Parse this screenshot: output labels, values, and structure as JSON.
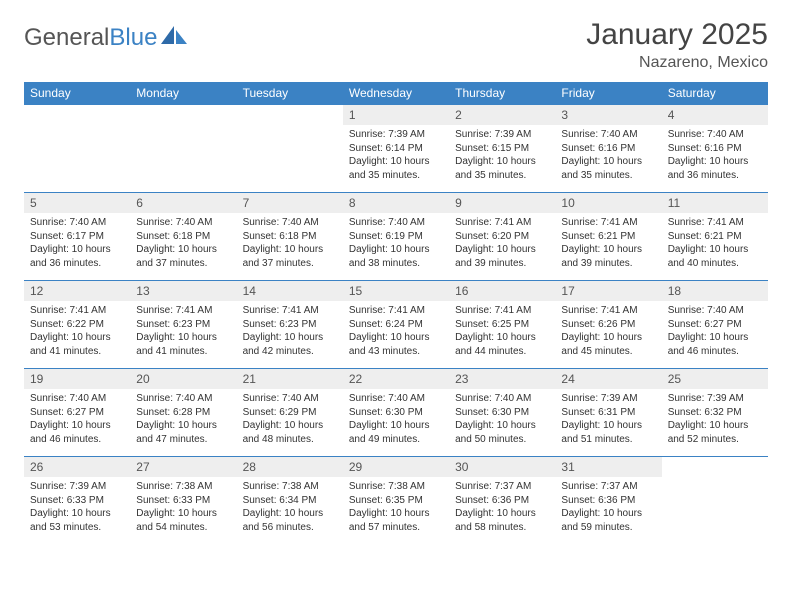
{
  "logo": {
    "word1": "General",
    "word2": "Blue"
  },
  "title": "January 2025",
  "subtitle": "Nazareno, Mexico",
  "colors": {
    "header_bg": "#3b82c4",
    "header_text": "#ffffff",
    "daynum_bg": "#eeeeee",
    "body_text": "#333333",
    "row_border": "#3b82c4",
    "page_bg": "#ffffff"
  },
  "typography": {
    "title_fontsize": 30,
    "subtitle_fontsize": 16,
    "dayheader_fontsize": 12,
    "daynum_fontsize": 12,
    "cell_fontsize": 10
  },
  "day_headers": [
    "Sunday",
    "Monday",
    "Tuesday",
    "Wednesday",
    "Thursday",
    "Friday",
    "Saturday"
  ],
  "weeks": [
    [
      {
        "n": "",
        "lines": []
      },
      {
        "n": "",
        "lines": []
      },
      {
        "n": "",
        "lines": []
      },
      {
        "n": "1",
        "lines": [
          "Sunrise: 7:39 AM",
          "Sunset: 6:14 PM",
          "Daylight: 10 hours and 35 minutes."
        ]
      },
      {
        "n": "2",
        "lines": [
          "Sunrise: 7:39 AM",
          "Sunset: 6:15 PM",
          "Daylight: 10 hours and 35 minutes."
        ]
      },
      {
        "n": "3",
        "lines": [
          "Sunrise: 7:40 AM",
          "Sunset: 6:16 PM",
          "Daylight: 10 hours and 35 minutes."
        ]
      },
      {
        "n": "4",
        "lines": [
          "Sunrise: 7:40 AM",
          "Sunset: 6:16 PM",
          "Daylight: 10 hours and 36 minutes."
        ]
      }
    ],
    [
      {
        "n": "5",
        "lines": [
          "Sunrise: 7:40 AM",
          "Sunset: 6:17 PM",
          "Daylight: 10 hours and 36 minutes."
        ]
      },
      {
        "n": "6",
        "lines": [
          "Sunrise: 7:40 AM",
          "Sunset: 6:18 PM",
          "Daylight: 10 hours and 37 minutes."
        ]
      },
      {
        "n": "7",
        "lines": [
          "Sunrise: 7:40 AM",
          "Sunset: 6:18 PM",
          "Daylight: 10 hours and 37 minutes."
        ]
      },
      {
        "n": "8",
        "lines": [
          "Sunrise: 7:40 AM",
          "Sunset: 6:19 PM",
          "Daylight: 10 hours and 38 minutes."
        ]
      },
      {
        "n": "9",
        "lines": [
          "Sunrise: 7:41 AM",
          "Sunset: 6:20 PM",
          "Daylight: 10 hours and 39 minutes."
        ]
      },
      {
        "n": "10",
        "lines": [
          "Sunrise: 7:41 AM",
          "Sunset: 6:21 PM",
          "Daylight: 10 hours and 39 minutes."
        ]
      },
      {
        "n": "11",
        "lines": [
          "Sunrise: 7:41 AM",
          "Sunset: 6:21 PM",
          "Daylight: 10 hours and 40 minutes."
        ]
      }
    ],
    [
      {
        "n": "12",
        "lines": [
          "Sunrise: 7:41 AM",
          "Sunset: 6:22 PM",
          "Daylight: 10 hours and 41 minutes."
        ]
      },
      {
        "n": "13",
        "lines": [
          "Sunrise: 7:41 AM",
          "Sunset: 6:23 PM",
          "Daylight: 10 hours and 41 minutes."
        ]
      },
      {
        "n": "14",
        "lines": [
          "Sunrise: 7:41 AM",
          "Sunset: 6:23 PM",
          "Daylight: 10 hours and 42 minutes."
        ]
      },
      {
        "n": "15",
        "lines": [
          "Sunrise: 7:41 AM",
          "Sunset: 6:24 PM",
          "Daylight: 10 hours and 43 minutes."
        ]
      },
      {
        "n": "16",
        "lines": [
          "Sunrise: 7:41 AM",
          "Sunset: 6:25 PM",
          "Daylight: 10 hours and 44 minutes."
        ]
      },
      {
        "n": "17",
        "lines": [
          "Sunrise: 7:41 AM",
          "Sunset: 6:26 PM",
          "Daylight: 10 hours and 45 minutes."
        ]
      },
      {
        "n": "18",
        "lines": [
          "Sunrise: 7:40 AM",
          "Sunset: 6:27 PM",
          "Daylight: 10 hours and 46 minutes."
        ]
      }
    ],
    [
      {
        "n": "19",
        "lines": [
          "Sunrise: 7:40 AM",
          "Sunset: 6:27 PM",
          "Daylight: 10 hours and 46 minutes."
        ]
      },
      {
        "n": "20",
        "lines": [
          "Sunrise: 7:40 AM",
          "Sunset: 6:28 PM",
          "Daylight: 10 hours and 47 minutes."
        ]
      },
      {
        "n": "21",
        "lines": [
          "Sunrise: 7:40 AM",
          "Sunset: 6:29 PM",
          "Daylight: 10 hours and 48 minutes."
        ]
      },
      {
        "n": "22",
        "lines": [
          "Sunrise: 7:40 AM",
          "Sunset: 6:30 PM",
          "Daylight: 10 hours and 49 minutes."
        ]
      },
      {
        "n": "23",
        "lines": [
          "Sunrise: 7:40 AM",
          "Sunset: 6:30 PM",
          "Daylight: 10 hours and 50 minutes."
        ]
      },
      {
        "n": "24",
        "lines": [
          "Sunrise: 7:39 AM",
          "Sunset: 6:31 PM",
          "Daylight: 10 hours and 51 minutes."
        ]
      },
      {
        "n": "25",
        "lines": [
          "Sunrise: 7:39 AM",
          "Sunset: 6:32 PM",
          "Daylight: 10 hours and 52 minutes."
        ]
      }
    ],
    [
      {
        "n": "26",
        "lines": [
          "Sunrise: 7:39 AM",
          "Sunset: 6:33 PM",
          "Daylight: 10 hours and 53 minutes."
        ]
      },
      {
        "n": "27",
        "lines": [
          "Sunrise: 7:38 AM",
          "Sunset: 6:33 PM",
          "Daylight: 10 hours and 54 minutes."
        ]
      },
      {
        "n": "28",
        "lines": [
          "Sunrise: 7:38 AM",
          "Sunset: 6:34 PM",
          "Daylight: 10 hours and 56 minutes."
        ]
      },
      {
        "n": "29",
        "lines": [
          "Sunrise: 7:38 AM",
          "Sunset: 6:35 PM",
          "Daylight: 10 hours and 57 minutes."
        ]
      },
      {
        "n": "30",
        "lines": [
          "Sunrise: 7:37 AM",
          "Sunset: 6:36 PM",
          "Daylight: 10 hours and 58 minutes."
        ]
      },
      {
        "n": "31",
        "lines": [
          "Sunrise: 7:37 AM",
          "Sunset: 6:36 PM",
          "Daylight: 10 hours and 59 minutes."
        ]
      },
      {
        "n": "",
        "lines": []
      }
    ]
  ]
}
